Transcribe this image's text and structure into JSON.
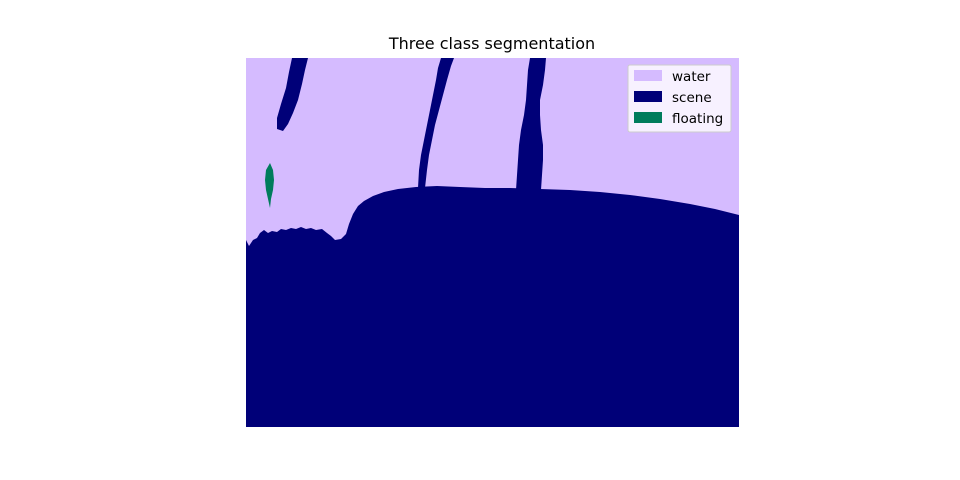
{
  "chart_data": {
    "type": "heatmap",
    "title": "Three class segmentation",
    "xlabel": "",
    "ylabel": "",
    "axes_visible": false,
    "grid": false,
    "legend_placement": "top-right",
    "classes": [
      {
        "name": "water",
        "color": "#d5bbff"
      },
      {
        "name": "scene",
        "color": "#000078"
      },
      {
        "name": "floating",
        "color": "#007c5c"
      }
    ]
  }
}
